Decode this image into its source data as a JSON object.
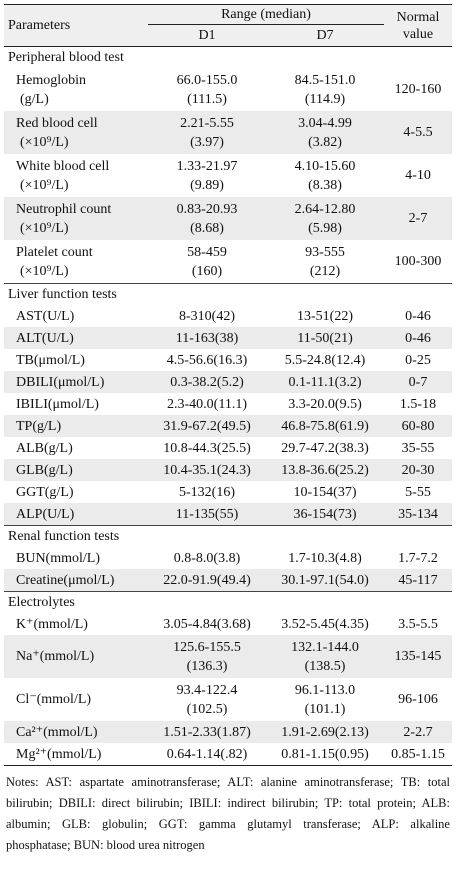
{
  "header": {
    "parameters": "Parameters",
    "range": "Range (median)",
    "normal_line1": "Normal",
    "normal_line2": "value",
    "d1": "D1",
    "d7": "D7"
  },
  "sections": [
    {
      "title": "Peripheral blood test",
      "rows": [
        {
          "p1": "Hemoglobin",
          "p2": "(g/L)",
          "d1a": "66.0-155.0",
          "d1b": "(111.5)",
          "d7a": "84.5-151.0",
          "d7b": "(114.9)",
          "nv": "120-160"
        },
        {
          "p1": "Red blood cell",
          "p2": "(×10⁹/L)",
          "d1a": "2.21-5.55",
          "d1b": "(3.97)",
          "d7a": "3.04-4.99",
          "d7b": "(3.82)",
          "nv": "4-5.5"
        },
        {
          "p1": "White blood cell",
          "p2": "(×10⁹/L)",
          "d1a": "1.33-21.97",
          "d1b": "(9.89)",
          "d7a": "4.10-15.60",
          "d7b": "(8.38)",
          "nv": "4-10"
        },
        {
          "p1": "Neutrophil count",
          "p2": "(×10⁹/L)",
          "d1a": "0.83-20.93",
          "d1b": "(8.68)",
          "d7a": "2.64-12.80",
          "d7b": "(5.98)",
          "nv": "2-7"
        },
        {
          "p1": "Platelet count",
          "p2": "(×10⁹/L)",
          "d1a": "58-459",
          "d1b": "(160)",
          "d7a": "93-555",
          "d7b": "(212)",
          "nv": "100-300"
        }
      ]
    },
    {
      "title": "Liver function tests",
      "rows": [
        {
          "p1": "AST(U/L)",
          "d1a": "8-310(42)",
          "d7a": "13-51(22)",
          "nv": "0-46"
        },
        {
          "p1": "ALT(U/L)",
          "d1a": "11-163(38)",
          "d7a": "11-50(21)",
          "nv": "0-46"
        },
        {
          "p1": "TB(μmol/L)",
          "d1a": "4.5-56.6(16.3)",
          "d7a": "5.5-24.8(12.4)",
          "nv": "0-25"
        },
        {
          "p1": "DBILI(μmol/L)",
          "d1a": "0.3-38.2(5.2)",
          "d7a": "0.1-11.1(3.2)",
          "nv": "0-7"
        },
        {
          "p1": "IBILI(μmol/L)",
          "d1a": "2.3-40.0(11.1)",
          "d7a": "3.3-20.0(9.5)",
          "nv": "1.5-18"
        },
        {
          "p1": "TP(g/L)",
          "d1a": "31.9-67.2(49.5)",
          "d7a": "46.8-75.8(61.9)",
          "nv": "60-80"
        },
        {
          "p1": "ALB(g/L)",
          "d1a": "10.8-44.3(25.5)",
          "d7a": "29.7-47.2(38.3)",
          "nv": "35-55"
        },
        {
          "p1": "GLB(g/L)",
          "d1a": "10.4-35.1(24.3)",
          "d7a": "13.8-36.6(25.2)",
          "nv": "20-30"
        },
        {
          "p1": "GGT(g/L)",
          "d1a": "5-132(16)",
          "d7a": "10-154(37)",
          "nv": "5-55"
        },
        {
          "p1": "ALP(U/L)",
          "d1a": "11-135(55)",
          "d7a": "36-154(73)",
          "nv": "35-134"
        }
      ]
    },
    {
      "title": "Renal function tests",
      "rows": [
        {
          "p1": "BUN(mmol/L)",
          "d1a": "0.8-8.0(3.8)",
          "d7a": "1.7-10.3(4.8)",
          "nv": "1.7-7.2"
        },
        {
          "p1": "Creatine(μmol/L)",
          "d1a": "22.0-91.9(49.4)",
          "d7a": "30.1-97.1(54.0)",
          "nv": "45-117"
        }
      ]
    },
    {
      "title": "Electrolytes",
      "rows": [
        {
          "p1": "K⁺(mmol/L)",
          "d1a": "3.05-4.84(3.68)",
          "d7a": "3.52-5.45(4.35)",
          "nv": "3.5-5.5"
        },
        {
          "p1": "Na⁺(mmol/L)",
          "d1a": "125.6-155.5",
          "d1b": "(136.3)",
          "d7a": "132.1-144.0",
          "d7b": "(138.5)",
          "nv": "135-145"
        },
        {
          "p1": "Cl⁻(mmol/L)",
          "d1a": "93.4-122.4",
          "d1b": "(102.5)",
          "d7a": "96.1-113.0",
          "d7b": "(101.1)",
          "nv": "96-106"
        },
        {
          "p1": "Ca²⁺(mmol/L)",
          "d1a": "1.51-2.33(1.87)",
          "d7a": "1.91-2.69(2.13)",
          "nv": "2-2.7"
        },
        {
          "p1": "Mg²⁺(mmol/L)",
          "d1a": "0.64-1.14(.82)",
          "d7a": "0.81-1.15(0.95)",
          "nv": "0.85-1.15"
        }
      ]
    }
  ],
  "notes": "Notes: AST: aspartate aminotransferase; ALT: alanine aminotransferase; TB: total bilirubin; DBILI: direct bilirubin; IBILI: indirect bilirubin; TP: total protein; ALB: albumin; GLB: globulin; GGT: gamma glutamyl transferase; ALP: alkaline phosphatase; BUN: blood urea nitrogen"
}
